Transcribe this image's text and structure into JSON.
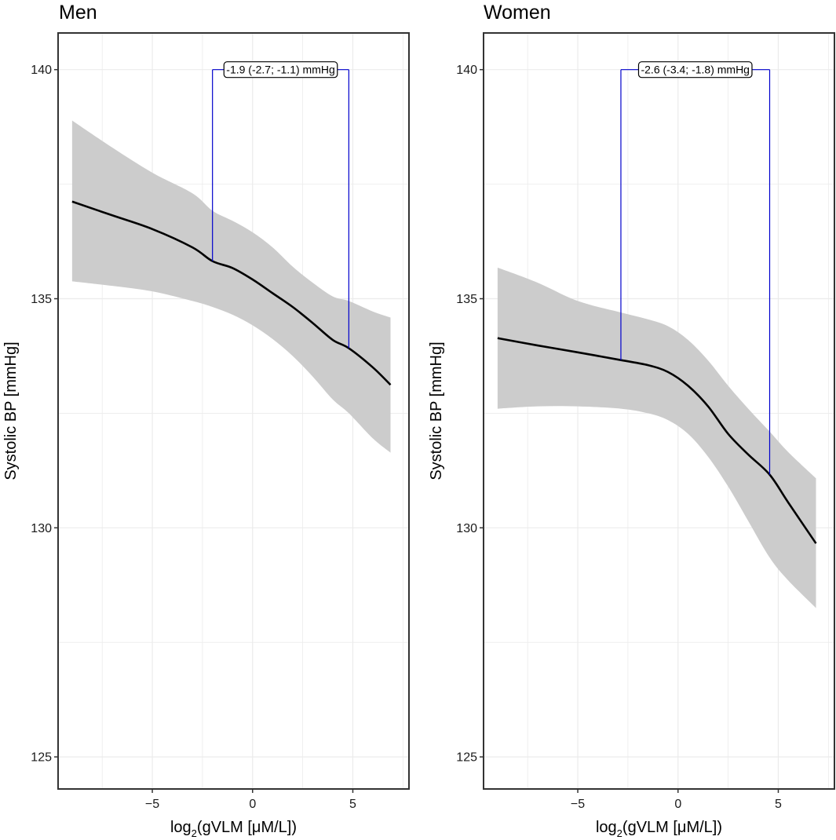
{
  "chart_data": [
    {
      "type": "line",
      "title": "Men",
      "xlabel": "log2(gVLM [μM/L])",
      "xlabel_parts": {
        "pre": "log",
        "sub": "2",
        "post": "(gVLM [μM/L])"
      },
      "ylabel": "Systolic BP [mmHg]",
      "xlim": [
        -9.7,
        7.8
      ],
      "ylim": [
        124.3,
        140.8
      ],
      "x_ticks": [
        -5,
        0,
        5
      ],
      "x_tick_labels": [
        "−5",
        "0",
        "5"
      ],
      "y_ticks": [
        125,
        130,
        135,
        140
      ],
      "y_tick_labels": [
        "125",
        "130",
        "135",
        "140"
      ],
      "grid": true,
      "series": [
        {
          "name": "fit",
          "color": "#000000",
          "x": [
            -9.0,
            -7.0,
            -5.0,
            -3.0,
            -2.0,
            -1.0,
            0.0,
            1.0,
            2.0,
            3.0,
            4.0,
            4.8,
            6.0,
            6.88
          ],
          "y": [
            137.12,
            136.82,
            136.52,
            136.12,
            135.82,
            135.67,
            135.42,
            135.12,
            134.82,
            134.47,
            134.1,
            133.92,
            133.5,
            133.12
          ],
          "lower": [
            135.38,
            135.28,
            135.16,
            134.95,
            134.82,
            134.65,
            134.42,
            134.12,
            133.75,
            133.3,
            132.8,
            132.5,
            131.95,
            131.64
          ],
          "upper": [
            138.89,
            138.3,
            137.75,
            137.3,
            136.92,
            136.7,
            136.45,
            136.12,
            135.7,
            135.35,
            135.05,
            134.95,
            134.72,
            134.59
          ]
        }
      ],
      "band_color": "#cccccc",
      "annotation": {
        "label": "-1.9 (-2.7; -1.1) mmHg",
        "x_from": -2.0,
        "x_to": 4.8,
        "y_from": 135.82,
        "y_to": 133.92,
        "bracket_y": 140,
        "color": "#0000cc"
      }
    },
    {
      "type": "line",
      "title": "Women",
      "xlabel": "log2(gVLM [μM/L])",
      "xlabel_parts": {
        "pre": "log",
        "sub": "2",
        "post": "(gVLM [μM/L])"
      },
      "ylabel": "Systolic BP [mmHg]",
      "xlim": [
        -9.7,
        7.8
      ],
      "ylim": [
        124.3,
        140.8
      ],
      "x_ticks": [
        -5,
        0,
        5
      ],
      "x_tick_labels": [
        "−5",
        "0",
        "5"
      ],
      "y_ticks": [
        125,
        130,
        135,
        140
      ],
      "y_tick_labels": [
        "125",
        "130",
        "135",
        "140"
      ],
      "grid": true,
      "series": [
        {
          "name": "fit",
          "color": "#000000",
          "x": [
            -9.0,
            -7.0,
            -5.0,
            -2.85,
            -1.5,
            -0.5,
            0.5,
            1.5,
            2.5,
            3.5,
            4.57,
            5.5,
            6.88
          ],
          "y": [
            134.14,
            133.98,
            133.83,
            133.66,
            133.55,
            133.4,
            133.1,
            132.65,
            132.05,
            131.6,
            131.16,
            130.55,
            129.66
          ],
          "lower": [
            132.6,
            132.65,
            132.65,
            132.6,
            132.5,
            132.35,
            132.05,
            131.55,
            130.9,
            130.15,
            129.35,
            128.85,
            128.25
          ],
          "upper": [
            135.68,
            135.35,
            134.95,
            134.7,
            134.55,
            134.4,
            134.1,
            133.65,
            133.1,
            132.6,
            132.1,
            131.65,
            131.08
          ]
        }
      ],
      "band_color": "#cccccc",
      "annotation": {
        "label": "-2.6 (-3.4; -1.8) mmHg",
        "x_from": -2.85,
        "x_to": 4.57,
        "y_from": 133.66,
        "y_to": 131.16,
        "bracket_y": 140,
        "color": "#0000cc"
      }
    }
  ]
}
